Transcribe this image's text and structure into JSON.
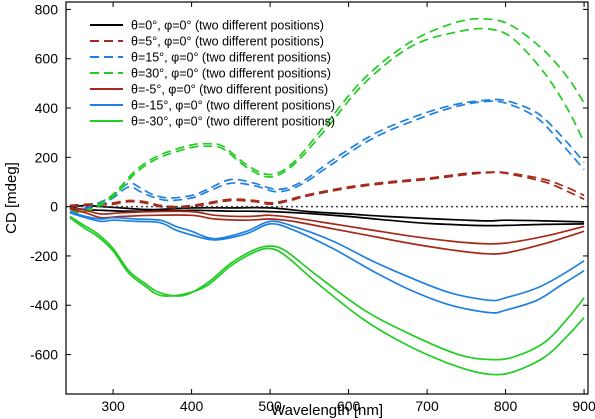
{
  "chart_data": {
    "type": "line",
    "title": "",
    "xlabel": "Wavelength [nm]",
    "ylabel": "CD [mdeg]",
    "xlim": [
      240,
      905
    ],
    "ylim": [
      -760,
      830
    ],
    "xticks": [
      300,
      400,
      500,
      600,
      700,
      800,
      900
    ],
    "yticks": [
      -600,
      -400,
      -200,
      0,
      200,
      400,
      600,
      800
    ],
    "grid": false,
    "zero_line": true,
    "legend_position": "top-left",
    "series": [
      {
        "name": "θ=0°, φ=0° (two different positions)",
        "color": "#000000",
        "dash": "solid",
        "curves": [
          {
            "x": [
              245,
              265,
              285,
              310,
              350,
              400,
              450,
              500,
              550,
              600,
              650,
              700,
              750,
              780,
              800,
              850,
              900
            ],
            "y": [
              -5,
              -12,
              -15,
              -18,
              -18,
              -15,
              -18,
              -20,
              -28,
              -40,
              -55,
              -68,
              -75,
              -77,
              -76,
              -72,
              -70
            ]
          },
          {
            "x": [
              245,
              265,
              285,
              310,
              350,
              400,
              450,
              500,
              550,
              600,
              650,
              700,
              750,
              780,
              800,
              850,
              900
            ],
            "y": [
              -5,
              5,
              0,
              -5,
              -12,
              -5,
              -5,
              -5,
              -20,
              -30,
              -40,
              -48,
              -55,
              -58,
              -55,
              -58,
              -62
            ]
          }
        ]
      },
      {
        "name": "θ=5°, φ=0° (two different positions)",
        "color": "#a52a1a",
        "dash": "dashed",
        "curves": [
          {
            "x": [
              245,
              265,
              285,
              300,
              320,
              340,
              360,
              380,
              400,
              420,
              450,
              480,
              500,
              520,
              550,
              600,
              650,
              700,
              750,
              780,
              800,
              850,
              880,
              900
            ],
            "y": [
              5,
              10,
              12,
              15,
              25,
              20,
              5,
              0,
              5,
              15,
              30,
              25,
              15,
              25,
              50,
              80,
              100,
              115,
              135,
              140,
              138,
              110,
              75,
              45
            ]
          },
          {
            "x": [
              245,
              265,
              285,
              300,
              320,
              340,
              360,
              380,
              400,
              420,
              450,
              480,
              500,
              520,
              550,
              600,
              650,
              700,
              750,
              780,
              800,
              850,
              880,
              900
            ],
            "y": [
              0,
              5,
              8,
              10,
              20,
              15,
              0,
              -5,
              0,
              10,
              25,
              20,
              10,
              20,
              45,
              75,
              95,
              110,
              130,
              138,
              135,
              100,
              60,
              30
            ]
          }
        ]
      },
      {
        "name": "θ=15°, φ=0° (two different positions)",
        "color": "#2080e0",
        "dash": "dashed",
        "curves": [
          {
            "x": [
              245,
              265,
              285,
              300,
              320,
              335,
              350,
              370,
              400,
              420,
              450,
              480,
              510,
              540,
              580,
              630,
              680,
              730,
              770,
              800,
              840,
              870,
              900
            ],
            "y": [
              -10,
              -5,
              20,
              45,
              95,
              75,
              50,
              35,
              45,
              70,
              110,
              95,
              70,
              100,
              190,
              290,
              360,
              410,
              430,
              430,
              380,
              290,
              180
            ]
          },
          {
            "x": [
              245,
              265,
              285,
              300,
              320,
              335,
              350,
              370,
              400,
              420,
              450,
              480,
              510,
              540,
              580,
              630,
              680,
              730,
              770,
              800,
              840,
              870,
              900
            ],
            "y": [
              -10,
              -8,
              10,
              35,
              80,
              60,
              40,
              25,
              35,
              60,
              95,
              85,
              60,
              90,
              175,
              275,
              345,
              400,
              425,
              420,
              360,
              260,
              150
            ]
          }
        ]
      },
      {
        "name": "θ=30°, φ=0° (two different positions)",
        "color": "#22cc22",
        "dash": "dashed",
        "curves": [
          {
            "x": [
              245,
              270,
              300,
              330,
              360,
              400,
              420,
              440,
              470,
              500,
              530,
              570,
              620,
              680,
              740,
              780,
              810,
              850,
              880,
              900
            ],
            "y": [
              -20,
              -10,
              50,
              150,
              210,
              250,
              255,
              245,
              170,
              130,
              180,
              330,
              520,
              670,
              750,
              760,
              730,
              630,
              520,
              420
            ]
          },
          {
            "x": [
              245,
              270,
              300,
              330,
              360,
              400,
              420,
              440,
              470,
              500,
              530,
              570,
              620,
              680,
              740,
              780,
              810,
              850,
              880,
              900
            ],
            "y": [
              -25,
              -15,
              40,
              140,
              200,
              240,
              245,
              235,
              160,
              120,
              170,
              310,
              500,
              650,
              710,
              720,
              680,
              540,
              390,
              260
            ]
          }
        ]
      },
      {
        "name": "θ=-5°, φ=0° (two different positions)",
        "color": "#a52a1a",
        "dash": "solid",
        "curves": [
          {
            "x": [
              245,
              265,
              285,
              310,
              350,
              400,
              430,
              470,
              500,
              530,
              580,
              630,
              680,
              730,
              770,
              800,
              850,
              900
            ],
            "y": [
              -5,
              -15,
              -30,
              -25,
              -20,
              -20,
              -35,
              -40,
              -35,
              -45,
              -70,
              -95,
              -120,
              -140,
              -150,
              -148,
              -120,
              -80
            ]
          },
          {
            "x": [
              245,
              265,
              285,
              310,
              350,
              400,
              430,
              470,
              500,
              530,
              580,
              630,
              680,
              730,
              770,
              800,
              850,
              900
            ],
            "y": [
              -10,
              -25,
              -45,
              -40,
              -35,
              -35,
              -50,
              -55,
              -50,
              -60,
              -90,
              -120,
              -150,
              -175,
              -190,
              -188,
              -150,
              -100
            ]
          }
        ]
      },
      {
        "name": "θ=-15°, φ=0° (two different positions)",
        "color": "#2080e0",
        "dash": "solid",
        "curves": [
          {
            "x": [
              245,
              265,
              285,
              300,
              330,
              360,
              380,
              400,
              430,
              470,
              500,
              530,
              580,
              630,
              680,
              730,
              780,
              800,
              840,
              870,
              900
            ],
            "y": [
              -20,
              -40,
              -50,
              -45,
              -50,
              -55,
              -80,
              -100,
              -130,
              -100,
              -60,
              -80,
              -140,
              -220,
              -290,
              -350,
              -380,
              -370,
              -330,
              -280,
              -220
            ]
          },
          {
            "x": [
              245,
              265,
              285,
              300,
              330,
              360,
              380,
              400,
              430,
              470,
              500,
              530,
              580,
              630,
              680,
              730,
              780,
              800,
              840,
              870,
              900
            ],
            "y": [
              -25,
              -45,
              -60,
              -55,
              -60,
              -65,
              -95,
              -115,
              -135,
              -110,
              -70,
              -95,
              -170,
              -260,
              -340,
              -400,
              -430,
              -420,
              -380,
              -320,
              -260
            ]
          }
        ]
      },
      {
        "name": "θ=-30°, φ=0° (two different positions)",
        "color": "#22cc22",
        "dash": "solid",
        "curves": [
          {
            "x": [
              245,
              265,
              280,
              300,
              320,
              340,
              360,
              390,
              420,
              450,
              480,
              500,
              520,
              560,
              620,
              680,
              740,
              780,
              810,
              850,
              880,
              900
            ],
            "y": [
              -40,
              -80,
              -110,
              -170,
              -260,
              -310,
              -350,
              -360,
              -310,
              -230,
              -175,
              -160,
              -180,
              -280,
              -420,
              -520,
              -600,
              -620,
              -610,
              -550,
              -450,
              -370
            ]
          },
          {
            "x": [
              245,
              265,
              280,
              300,
              320,
              340,
              360,
              390,
              420,
              450,
              480,
              500,
              520,
              560,
              620,
              680,
              740,
              780,
              810,
              850,
              880,
              900
            ],
            "y": [
              -45,
              -90,
              -120,
              -180,
              -270,
              -320,
              -360,
              -355,
              -320,
              -240,
              -185,
              -170,
              -200,
              -310,
              -460,
              -570,
              -650,
              -680,
              -670,
              -610,
              -520,
              -450
            ]
          }
        ]
      }
    ]
  }
}
